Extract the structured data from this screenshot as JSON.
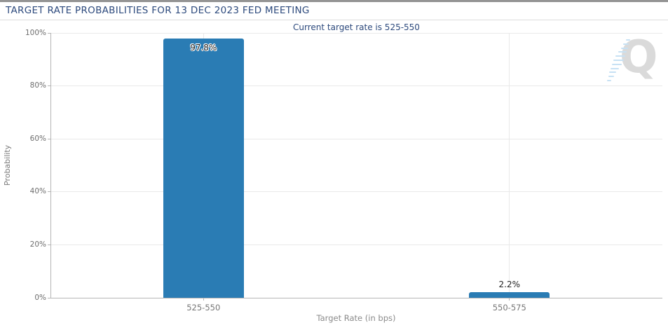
{
  "header": {
    "title": "TARGET RATE PROBABILITIES FOR 13 DEC 2023 FED MEETING"
  },
  "chart_data": {
    "type": "bar",
    "title": "Current target rate is 525-550",
    "categories": [
      "525-550",
      "550-575"
    ],
    "values": [
      97.8,
      2.2
    ],
    "value_labels": [
      "97.8%",
      "2.2%"
    ],
    "xlabel": "Target Rate (in bps)",
    "ylabel": "Probability",
    "ylim": [
      0,
      100
    ],
    "ytick_step": 20,
    "ytick_labels": [
      "0%",
      "20%",
      "40%",
      "60%",
      "80%",
      "100%"
    ],
    "grid": true,
    "legend": "none",
    "bar_color": "#2a7cb4"
  },
  "watermark": {
    "letter": "Q"
  },
  "colors": {
    "title_text": "#2d4a7d",
    "bar": "#2a7cb4",
    "axis": "#b5b5b5",
    "grid": "#e9e9e9",
    "tick_text": "#757575"
  }
}
